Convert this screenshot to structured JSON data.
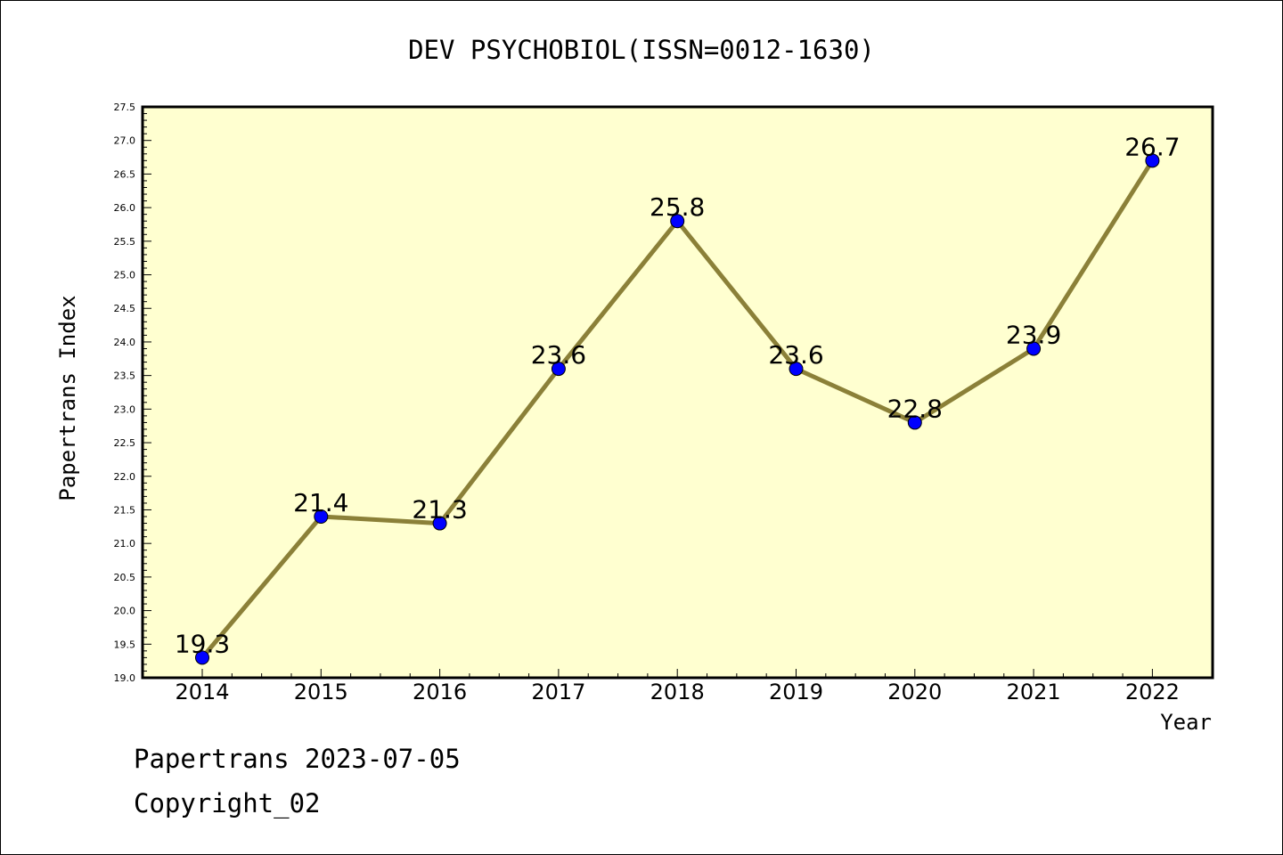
{
  "chart_data": {
    "type": "line",
    "title": "DEV PSYCHOBIOL(ISSN=0012-1630)",
    "xlabel": "Year",
    "ylabel": "Papertrans Index",
    "categories": [
      "2014",
      "2015",
      "2016",
      "2017",
      "2018",
      "2019",
      "2020",
      "2021",
      "2022"
    ],
    "series": [
      {
        "values": [
          19.3,
          21.4,
          21.3,
          23.6,
          25.8,
          23.6,
          22.8,
          23.9,
          26.7
        ]
      }
    ],
    "data_labels": [
      "19.3",
      "21.4",
      "21.3",
      "23.6",
      "25.8",
      "23.6",
      "22.8",
      "23.9",
      "26.7"
    ],
    "ylim": [
      19.0,
      27.5
    ],
    "yticks": [
      "19.0",
      "19.5",
      "20.0",
      "20.5",
      "21.0",
      "21.5",
      "22.0",
      "22.5",
      "23.0",
      "23.5",
      "24.0",
      "24.5",
      "25.0",
      "25.5",
      "26.0",
      "26.5",
      "27.0",
      "27.5"
    ],
    "grid": false,
    "colors": {
      "plot_background": "#ffffd0",
      "line": "#8b8038",
      "marker": "#0000ff"
    }
  },
  "footer": {
    "line1": "Papertrans 2023-07-05",
    "line2": "Copyright_02"
  }
}
